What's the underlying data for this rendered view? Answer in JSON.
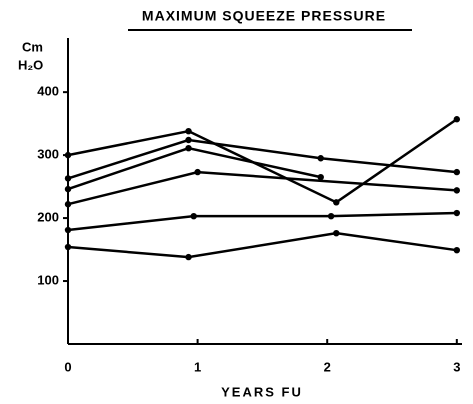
{
  "chart_data": {
    "type": "line",
    "title": "MAXIMUM SQUEEZE PRESSURE",
    "y_label": [
      "Cm",
      "H₂O"
    ],
    "x_label": "YEARS FU",
    "xlim": [
      0,
      3.04
    ],
    "xticks": [
      0,
      1,
      2,
      3
    ],
    "ylim": [
      0,
      486
    ],
    "yticks": [
      100,
      200,
      300,
      400
    ],
    "color": "#000000",
    "series": [
      {
        "x": [
          0,
          0.93,
          2.07,
          3
        ],
        "values": [
          300,
          338,
          225,
          357
        ]
      },
      {
        "x": [
          0,
          0.93,
          1.95,
          3
        ],
        "values": [
          263,
          324,
          295,
          273
        ]
      },
      {
        "x": [
          0,
          0.93,
          1.95
        ],
        "values": [
          246,
          311,
          265
        ]
      },
      {
        "x": [
          0,
          1,
          3
        ],
        "values": [
          222,
          273,
          244
        ]
      },
      {
        "x": [
          0,
          0.97,
          2.03,
          3
        ],
        "values": [
          181,
          203,
          203,
          208
        ]
      },
      {
        "x": [
          0,
          0.93,
          2.07,
          3
        ],
        "values": [
          154,
          138,
          176,
          149
        ]
      }
    ]
  }
}
